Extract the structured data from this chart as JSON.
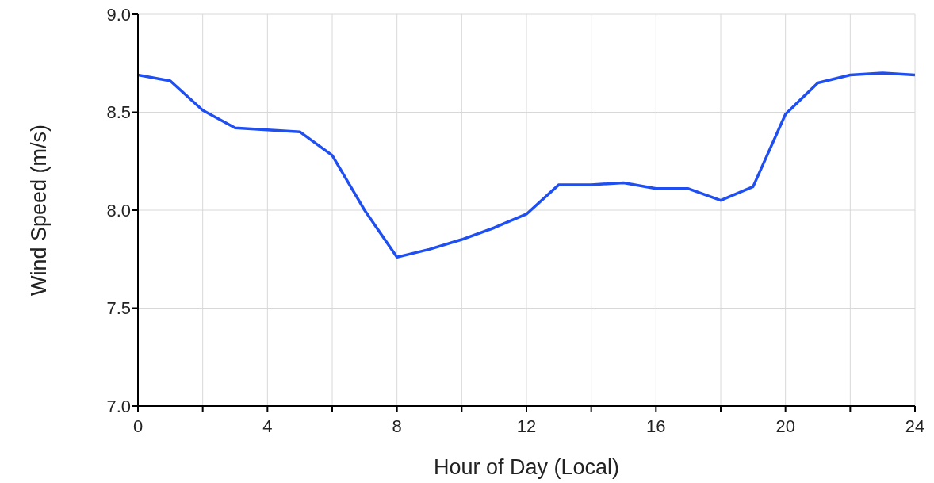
{
  "chart_data": {
    "type": "line",
    "xlabel": "Hour of Day (Local)",
    "ylabel": "Wind Speed (m/s)",
    "x": [
      0,
      1,
      2,
      3,
      4,
      5,
      6,
      7,
      8,
      9,
      10,
      11,
      12,
      13,
      14,
      15,
      16,
      17,
      18,
      19,
      20,
      21,
      22,
      23,
      24
    ],
    "series": [
      {
        "color": "#1f4ff0",
        "values": [
          8.69,
          8.66,
          8.51,
          8.42,
          8.41,
          8.4,
          8.28,
          8.0,
          7.76,
          7.8,
          7.85,
          7.91,
          7.98,
          8.13,
          8.13,
          8.14,
          8.11,
          8.11,
          8.05,
          8.12,
          8.49,
          8.65,
          8.69,
          8.7,
          8.69
        ]
      }
    ],
    "xlim": [
      0,
      24
    ],
    "xticks": [
      0,
      {
        "value": 2,
        "label": null
      },
      4,
      {
        "value": 6,
        "label": null
      },
      8,
      {
        "value": 10,
        "label": null
      },
      12,
      {
        "value": 14,
        "label": null
      },
      16,
      {
        "value": 18,
        "label": null
      },
      20,
      {
        "value": 22,
        "label": null
      },
      24
    ],
    "ylim": [
      7.0,
      9.0
    ],
    "yticks": [
      {
        "value": 7.0,
        "label": "7.0"
      },
      {
        "value": 7.5,
        "label": "7.5"
      },
      {
        "value": 8.0,
        "label": "8.0"
      },
      {
        "value": 8.5,
        "label": "8.5"
      },
      {
        "value": 9.0,
        "label": "9.0"
      }
    ],
    "grid": true,
    "marker": "none",
    "line_style": "solid"
  }
}
